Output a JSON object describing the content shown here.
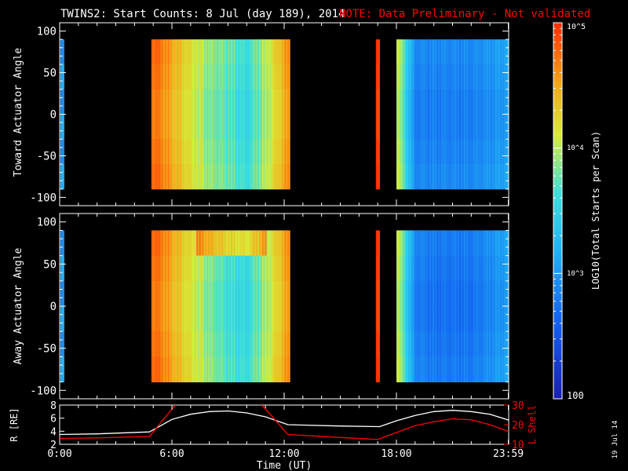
{
  "title": {
    "main": "TWINS2: Start Counts:  8 Jul (day 189), 2014",
    "note": "NOTE: Data Preliminary - Not validated",
    "note_color": "#ff0000"
  },
  "side_date": "19 Jul 14",
  "colorbar": {
    "label": "LOG10(Total Starts per Scan)",
    "min_label": "100",
    "tick_labels": [
      "10^3",
      "10^4",
      "10^5"
    ],
    "range": [
      100,
      100000
    ],
    "scale": "log"
  },
  "chart_data": [
    {
      "type": "heatmap",
      "ylabel": "Toward Actuator Angle",
      "ylim": [
        -110,
        110
      ],
      "yticks": [
        100,
        50,
        0,
        -50,
        -100
      ],
      "xlim": [
        0,
        24
      ],
      "data_angle_range": [
        -90,
        90
      ],
      "coverage_hours": [
        [
          4.9,
          12.3
        ],
        [
          16.9,
          17.1
        ],
        [
          18.0,
          24.0
        ]
      ],
      "log10_counts_by_hour": [
        [
          5.0,
          4.7
        ],
        [
          5.5,
          4.6
        ],
        [
          6.0,
          4.4
        ],
        [
          7.0,
          4.1
        ],
        [
          8.0,
          3.8
        ],
        [
          9.0,
          3.7
        ],
        [
          10.0,
          3.5
        ],
        [
          11.0,
          3.9
        ],
        [
          12.2,
          4.5
        ],
        [
          17.0,
          4.9
        ],
        [
          18.2,
          3.9
        ],
        [
          19.0,
          2.8
        ],
        [
          20.0,
          2.8
        ],
        [
          22.0,
          2.8
        ],
        [
          23.9,
          3.0
        ]
      ]
    },
    {
      "type": "heatmap",
      "ylabel": "Away Actuator Angle",
      "ylim": [
        -110,
        110
      ],
      "yticks": [
        100,
        50,
        0,
        -50,
        -100
      ],
      "xlim": [
        0,
        24
      ],
      "data_angle_range": [
        -90,
        90
      ],
      "coverage_hours": [
        [
          4.9,
          12.3
        ],
        [
          16.9,
          17.1
        ],
        [
          18.0,
          24.0
        ]
      ],
      "log10_counts_by_hour": [
        [
          5.0,
          4.7
        ],
        [
          5.5,
          4.6
        ],
        [
          6.0,
          4.4
        ],
        [
          7.0,
          4.1
        ],
        [
          8.0,
          3.8
        ],
        [
          9.0,
          3.6
        ],
        [
          10.0,
          3.5
        ],
        [
          11.0,
          3.9
        ],
        [
          12.2,
          4.5
        ],
        [
          17.0,
          4.9
        ],
        [
          18.2,
          3.9
        ],
        [
          19.0,
          2.8
        ],
        [
          20.0,
          2.7
        ],
        [
          22.0,
          2.7
        ],
        [
          23.9,
          3.0
        ]
      ]
    },
    {
      "type": "line",
      "ylabel_left": "R [RE]",
      "ylabel_right": "L Shell",
      "ylim_left": [
        2,
        8
      ],
      "yticks_left": [
        8,
        6,
        4,
        2
      ],
      "ylim_right": [
        10,
        30
      ],
      "yticks_right": [
        30,
        20,
        10
      ],
      "xlabel": "Time (UT)",
      "xlim": [
        0,
        24
      ],
      "xtick_labels": [
        "0:00",
        "6:00",
        "12:00",
        "18:00",
        "23:59"
      ],
      "xtick_values": [
        0,
        6,
        12,
        18,
        23.98
      ],
      "series": [
        {
          "axis": "left",
          "color": "#ffffff",
          "x": [
            0,
            2,
            4.8,
            6,
            7,
            8,
            9,
            10,
            11,
            12.2,
            15,
            17.1,
            18,
            19,
            20,
            21,
            22,
            23,
            24
          ],
          "y": [
            3.5,
            3.6,
            3.9,
            5.8,
            6.6,
            7.0,
            7.1,
            6.8,
            6.2,
            5.0,
            4.8,
            4.7,
            5.6,
            6.4,
            7.0,
            7.2,
            7.0,
            6.6,
            5.7
          ]
        },
        {
          "axis": "right",
          "color": "#ff0000",
          "x": [
            0,
            2,
            4.8,
            6.0,
            6.3,
            10.7,
            11.0,
            12.2,
            15,
            17.0,
            18,
            19,
            20,
            21,
            22,
            23,
            24
          ],
          "y": [
            13,
            13.3,
            14,
            28,
            31,
            31,
            28,
            15,
            13.5,
            12.5,
            16,
            19.5,
            21.5,
            23,
            22.5,
            20,
            16.5
          ]
        }
      ]
    }
  ]
}
